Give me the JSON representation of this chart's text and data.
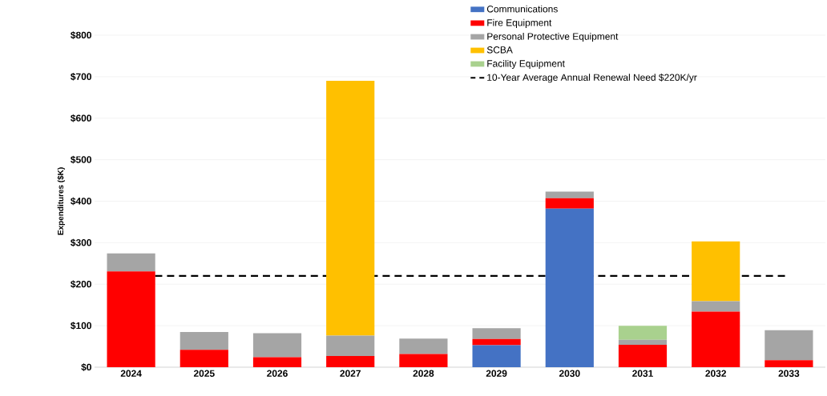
{
  "chart_data": {
    "type": "bar",
    "stacked": true,
    "ylabel": "Expenditures ($K)",
    "categories": [
      "2024",
      "2025",
      "2026",
      "2027",
      "2028",
      "2029",
      "2030",
      "2031",
      "2032",
      "2033"
    ],
    "series": [
      {
        "name": "Communications",
        "color": "#4472c4",
        "values": [
          0,
          0,
          0,
          0,
          0,
          53,
          382,
          0,
          0,
          0
        ]
      },
      {
        "name": "Fire Equipment",
        "color": "#ff0000",
        "values": [
          231,
          42,
          24,
          27,
          32,
          15,
          25,
          54,
          134,
          17
        ]
      },
      {
        "name": "Personal Protective Equipment",
        "color": "#a5a5a5",
        "values": [
          43,
          43,
          58,
          49,
          37,
          26,
          16,
          12,
          25,
          72
        ]
      },
      {
        "name": "SCBA",
        "color": "#ffc000",
        "values": [
          0,
          0,
          0,
          614,
          0,
          0,
          0,
          0,
          144,
          0
        ]
      },
      {
        "name": "Facility Equipment",
        "color": "#a9d18e",
        "values": [
          0,
          0,
          0,
          0,
          0,
          0,
          0,
          34,
          0,
          0
        ]
      }
    ],
    "ylim": [
      0,
      800
    ],
    "yticks": [
      {
        "value": 0,
        "label": "$0"
      },
      {
        "value": 100,
        "label": "$100"
      },
      {
        "value": 200,
        "label": "$200"
      },
      {
        "value": 300,
        "label": "$300"
      },
      {
        "value": 400,
        "label": "$400"
      },
      {
        "value": 500,
        "label": "$500"
      },
      {
        "value": 600,
        "label": "$600"
      },
      {
        "value": 700,
        "label": "$700"
      },
      {
        "value": 800,
        "label": "$800"
      }
    ],
    "ref_lines": [
      {
        "axis": "y",
        "value": 220,
        "label": "10-Year Average Annual Renewal Need $220K/yr",
        "color": "#000000",
        "line_style": "dashed"
      }
    ],
    "grid": "y",
    "legend": "top right"
  }
}
